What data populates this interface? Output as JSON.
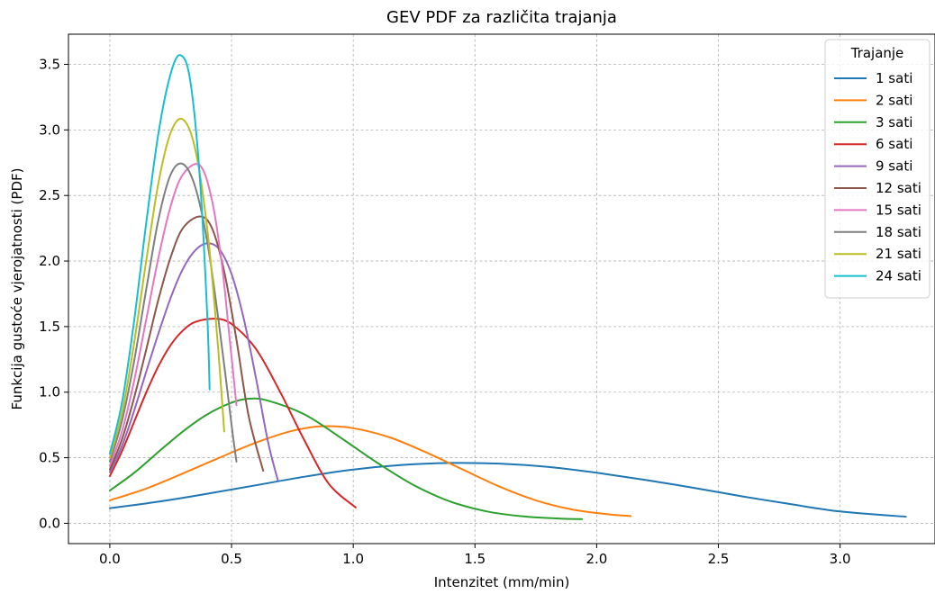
{
  "chart_data": {
    "type": "line",
    "title": "GEV PDF za različita trajanja",
    "xlabel": "Intenzitet (mm/min)",
    "ylabel": "Funkcija gustoće vjerojatnosti (PDF)",
    "xlim": [
      -0.17,
      3.39
    ],
    "ylim": [
      -0.155,
      3.73
    ],
    "xticks": [
      0.0,
      0.5,
      1.0,
      1.5,
      2.0,
      2.5,
      3.0
    ],
    "xtick_labels": [
      "0.0",
      "0.5",
      "1.0",
      "1.5",
      "2.0",
      "2.5",
      "3.0"
    ],
    "yticks": [
      0.0,
      0.5,
      1.0,
      1.5,
      2.0,
      2.5,
      3.0,
      3.5
    ],
    "ytick_labels": [
      "0.0",
      "0.5",
      "1.0",
      "1.5",
      "2.0",
      "2.5",
      "3.0",
      "3.5"
    ],
    "grid": true,
    "legend_title": "Trajanje",
    "legend_position": "top-right",
    "series": [
      {
        "name": "1 sati",
        "color": "#1f77b4",
        "x": [
          0,
          0.2,
          0.4,
          0.6,
          0.8,
          1.0,
          1.2,
          1.4,
          1.6,
          1.8,
          2.0,
          2.2,
          2.4,
          2.6,
          2.8,
          3.0,
          3.27
        ],
        "y": [
          0.115,
          0.165,
          0.225,
          0.29,
          0.355,
          0.41,
          0.445,
          0.46,
          0.455,
          0.43,
          0.385,
          0.33,
          0.27,
          0.205,
          0.145,
          0.09,
          0.05
        ]
      },
      {
        "name": "2 sati",
        "color": "#ff7f0e",
        "x": [
          0,
          0.15,
          0.3,
          0.45,
          0.6,
          0.75,
          0.87,
          1.0,
          1.15,
          1.3,
          1.45,
          1.6,
          1.75,
          1.9,
          2.05,
          2.14
        ],
        "y": [
          0.175,
          0.265,
          0.38,
          0.5,
          0.615,
          0.705,
          0.74,
          0.725,
          0.655,
          0.54,
          0.41,
          0.28,
          0.175,
          0.105,
          0.068,
          0.055
        ]
      },
      {
        "name": "3 sati",
        "color": "#2ca02c",
        "x": [
          0,
          0.1,
          0.2,
          0.3,
          0.4,
          0.5,
          0.57,
          0.65,
          0.8,
          0.95,
          1.1,
          1.25,
          1.4,
          1.55,
          1.7,
          1.85,
          1.94
        ],
        "y": [
          0.25,
          0.385,
          0.545,
          0.7,
          0.83,
          0.92,
          0.95,
          0.935,
          0.83,
          0.65,
          0.46,
          0.29,
          0.165,
          0.09,
          0.052,
          0.036,
          0.032
        ]
      },
      {
        "name": "6 sati",
        "color": "#d62728",
        "x": [
          0,
          0.05,
          0.1,
          0.15,
          0.2,
          0.25,
          0.3,
          0.35,
          0.43,
          0.5,
          0.6,
          0.7,
          0.8,
          0.9,
          1.01
        ],
        "y": [
          0.36,
          0.55,
          0.775,
          1.0,
          1.2,
          1.36,
          1.47,
          1.535,
          1.56,
          1.52,
          1.33,
          1.0,
          0.63,
          0.3,
          0.12
        ]
      },
      {
        "name": "9 sati",
        "color": "#9467bd",
        "x": [
          0,
          0.05,
          0.1,
          0.15,
          0.2,
          0.25,
          0.3,
          0.35,
          0.4,
          0.45,
          0.5,
          0.55,
          0.6,
          0.65,
          0.69
        ],
        "y": [
          0.39,
          0.59,
          0.86,
          1.16,
          1.45,
          1.72,
          1.94,
          2.08,
          2.135,
          2.09,
          1.9,
          1.56,
          1.11,
          0.62,
          0.33
        ]
      },
      {
        "name": "12 sati",
        "color": "#8c564b",
        "x": [
          0,
          0.05,
          0.1,
          0.15,
          0.2,
          0.25,
          0.3,
          0.37,
          0.42,
          0.47,
          0.52,
          0.57,
          0.63
        ],
        "y": [
          0.41,
          0.64,
          0.96,
          1.33,
          1.71,
          2.03,
          2.25,
          2.34,
          2.25,
          1.92,
          1.4,
          0.82,
          0.4
        ]
      },
      {
        "name": "15 sati",
        "color": "#e377c2",
        "x": [
          0,
          0.05,
          0.1,
          0.15,
          0.2,
          0.25,
          0.3,
          0.37,
          0.42,
          0.46,
          0.49,
          0.52
        ],
        "y": [
          0.44,
          0.7,
          1.09,
          1.56,
          2.03,
          2.42,
          2.66,
          2.73,
          2.46,
          1.98,
          1.45,
          0.9
        ]
      },
      {
        "name": "18 sati",
        "color": "#7f7f7f",
        "x": [
          0,
          0.05,
          0.1,
          0.15,
          0.2,
          0.25,
          0.3,
          0.35,
          0.4,
          0.45,
          0.5,
          0.52
        ],
        "y": [
          0.47,
          0.78,
          1.24,
          1.79,
          2.32,
          2.66,
          2.74,
          2.57,
          2.15,
          1.5,
          0.75,
          0.47
        ]
      },
      {
        "name": "21 sati",
        "color": "#bcbd22",
        "x": [
          0,
          0.05,
          0.1,
          0.15,
          0.2,
          0.25,
          0.3,
          0.35,
          0.4,
          0.44,
          0.47
        ],
        "y": [
          0.5,
          0.84,
          1.38,
          2.01,
          2.6,
          2.98,
          3.08,
          2.86,
          2.25,
          1.45,
          0.7
        ]
      },
      {
        "name": "24 sati",
        "color": "#17becf",
        "x": [
          0,
          0.05,
          0.1,
          0.15,
          0.2,
          0.25,
          0.29,
          0.33,
          0.37,
          0.4,
          0.41
        ],
        "y": [
          0.53,
          0.92,
          1.55,
          2.3,
          2.98,
          3.43,
          3.57,
          3.38,
          2.63,
          1.6,
          1.02
        ]
      }
    ]
  }
}
